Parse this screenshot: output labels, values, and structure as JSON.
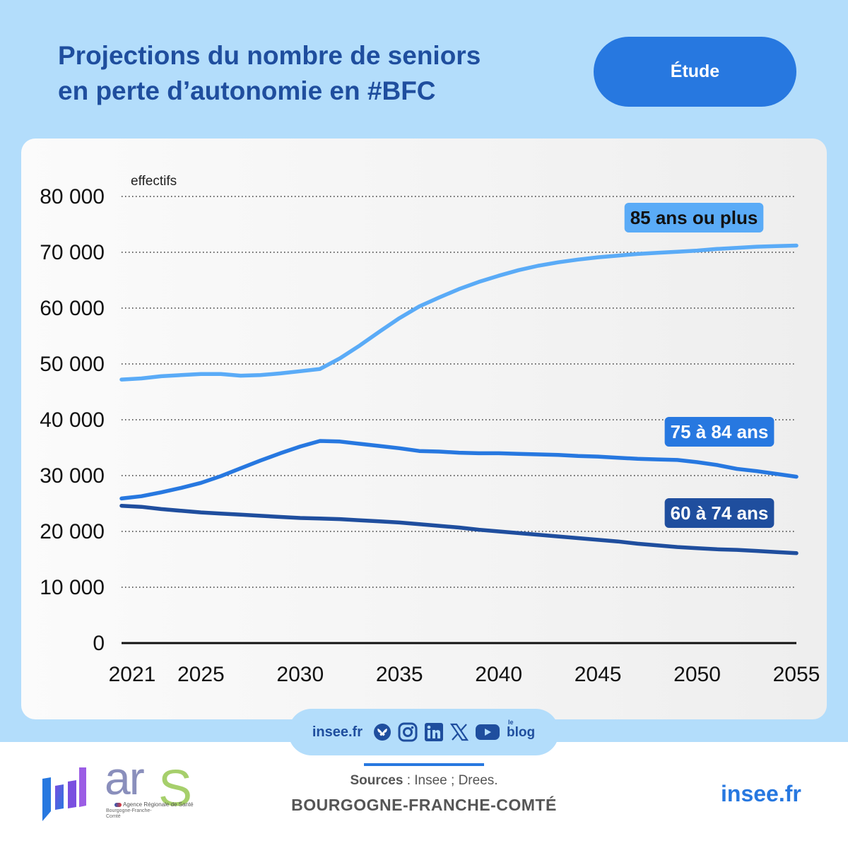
{
  "header": {
    "title_line1": "Projections du nombre de seniors",
    "title_line2": "en perte d’autonomie en #BFC",
    "tag_label": "Étude"
  },
  "colors": {
    "background": "#b3ddfb",
    "title": "#1f4e9e",
    "accent": "#2778e0",
    "series_85_plus": "#5aabf7",
    "series_75_84": "#2778e0",
    "series_60_74": "#1f4e9e"
  },
  "chart_data": {
    "type": "line",
    "ylabel": "effectifs",
    "xlabel": "",
    "ylim": [
      0,
      80000
    ],
    "xlim": [
      2021,
      2055
    ],
    "yticks": [
      0,
      10000,
      20000,
      30000,
      40000,
      50000,
      60000,
      70000,
      80000
    ],
    "ytick_labels": [
      "0",
      "10 000",
      "20 000",
      "30 000",
      "40 000",
      "50 000",
      "60 000",
      "70 000",
      "80 000"
    ],
    "xticks": [
      2021,
      2025,
      2030,
      2035,
      2040,
      2045,
      2050,
      2055
    ],
    "xtick_labels": [
      "2021",
      "2025",
      "2030",
      "2035",
      "2040",
      "2045",
      "2050",
      "2055"
    ],
    "grid": "horizontal dotted",
    "series": [
      {
        "name": "85 ans ou plus",
        "color": "#5aabf7",
        "x": [
          2021,
          2022,
          2023,
          2024,
          2025,
          2026,
          2027,
          2028,
          2029,
          2030,
          2031,
          2032,
          2033,
          2034,
          2035,
          2036,
          2037,
          2038,
          2039,
          2040,
          2041,
          2042,
          2043,
          2044,
          2045,
          2046,
          2047,
          2048,
          2049,
          2050,
          2051,
          2052,
          2053,
          2054,
          2055
        ],
        "y": [
          47200,
          47400,
          47800,
          48000,
          48200,
          48200,
          47900,
          48000,
          48300,
          48700,
          49100,
          51000,
          53300,
          55800,
          58200,
          60300,
          61900,
          63400,
          64700,
          65800,
          66800,
          67600,
          68200,
          68700,
          69100,
          69400,
          69700,
          69900,
          70100,
          70300,
          70600,
          70800,
          71000,
          71100,
          71200
        ]
      },
      {
        "name": "75 à 84 ans",
        "color": "#2778e0",
        "x": [
          2021,
          2022,
          2023,
          2024,
          2025,
          2026,
          2027,
          2028,
          2029,
          2030,
          2031,
          2032,
          2033,
          2034,
          2035,
          2036,
          2037,
          2038,
          2039,
          2040,
          2041,
          2042,
          2043,
          2044,
          2045,
          2046,
          2047,
          2048,
          2049,
          2050,
          2051,
          2052,
          2053,
          2054,
          2055
        ],
        "y": [
          25900,
          26300,
          27000,
          27800,
          28700,
          29900,
          31300,
          32700,
          34000,
          35200,
          36200,
          36100,
          35700,
          35300,
          34900,
          34400,
          34300,
          34100,
          34000,
          34000,
          33900,
          33800,
          33700,
          33500,
          33400,
          33200,
          33000,
          32900,
          32800,
          32400,
          31900,
          31200,
          30800,
          30300,
          29800
        ]
      },
      {
        "name": "60 à 74 ans",
        "color": "#1f4e9e",
        "x": [
          2021,
          2022,
          2023,
          2024,
          2025,
          2026,
          2027,
          2028,
          2029,
          2030,
          2031,
          2032,
          2033,
          2034,
          2035,
          2036,
          2037,
          2038,
          2039,
          2040,
          2041,
          2042,
          2043,
          2044,
          2045,
          2046,
          2047,
          2048,
          2049,
          2050,
          2051,
          2052,
          2053,
          2054,
          2055
        ],
        "y": [
          24600,
          24400,
          24000,
          23700,
          23400,
          23200,
          23000,
          22800,
          22600,
          22400,
          22300,
          22200,
          22000,
          21800,
          21600,
          21300,
          21000,
          20700,
          20300,
          20000,
          19700,
          19400,
          19100,
          18800,
          18500,
          18200,
          17800,
          17500,
          17200,
          17000,
          16800,
          16700,
          16500,
          16300,
          16100
        ]
      }
    ]
  },
  "social": {
    "url": "insee.fr",
    "icons": [
      "bluesky-icon",
      "instagram-icon",
      "linkedin-icon",
      "x-icon",
      "youtube-icon",
      "blog-icon"
    ],
    "blog_text": "blog",
    "blog_le": "le"
  },
  "footer": {
    "sources_label": "Sources",
    "sources_text": " : Insee ; Drees.",
    "region": "BOURGOGNE-FRANCHE-COMTÉ",
    "url": "insee.fr",
    "ars_word": "ar",
    "ars_s": "S",
    "ars_agency": "Agence Régionale de Santé",
    "ars_region": "Bourgogne-Franche-Comté"
  }
}
